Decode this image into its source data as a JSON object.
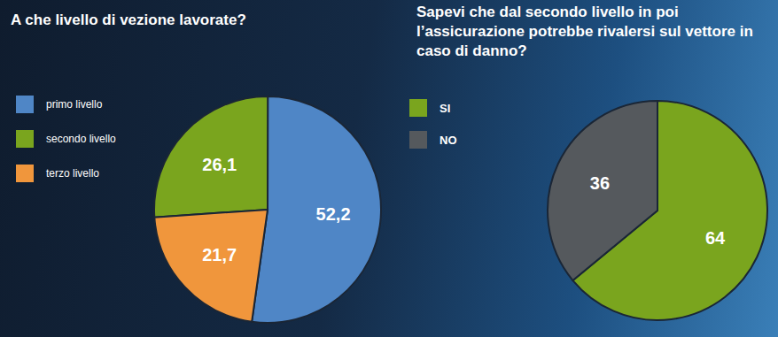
{
  "chart_data": [
    {
      "type": "pie",
      "title": "A che livello di vezione lavorate?",
      "categories": [
        "primo livello",
        "secondo livello",
        "terzo livello"
      ],
      "values": [
        52.2,
        26.1,
        21.7
      ],
      "value_labels": [
        "52,2",
        "26,1",
        "21,7"
      ],
      "colors": [
        "#4f86c6",
        "#7aa51e",
        "#f0963c"
      ],
      "data_labels": true,
      "legend": "left"
    },
    {
      "type": "pie",
      "title": "Sapevi che dal secondo livello in poi l’assicurazione potrebbe rivalersi sul vettore in caso di danno?",
      "categories": [
        "SI",
        "NO"
      ],
      "values": [
        64,
        36
      ],
      "value_labels": [
        "64",
        "36"
      ],
      "colors": [
        "#7aa51e",
        "#55595d"
      ],
      "data_labels": true,
      "legend": "left"
    }
  ]
}
